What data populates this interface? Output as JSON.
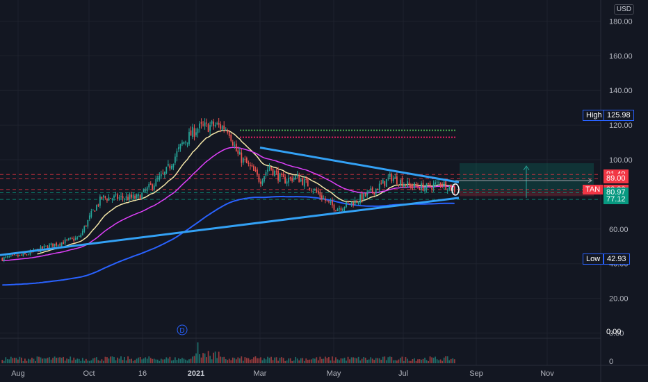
{
  "currency": "USD",
  "chart_data": {
    "type": "candlestick",
    "ticker": "TAN",
    "ylim": [
      -2,
      190
    ],
    "y_ticks": [
      0,
      20,
      40,
      60,
      80,
      100,
      120,
      140,
      160,
      180
    ],
    "y_tick_labels": [
      "0.00",
      "20.00",
      "40.00",
      "60.00",
      "80.00",
      "100.00",
      "120.00",
      "140.00",
      "160.00",
      "180.00"
    ],
    "x_labels": [
      "Aug",
      "Oct",
      "16",
      "2021",
      "Mar",
      "May",
      "Jul",
      "Sep",
      "Nov"
    ],
    "x_bold": "2021",
    "price_anchors": [
      {
        "t": 0,
        "p": 43
      },
      {
        "t": 0.05,
        "p": 45
      },
      {
        "t": 0.1,
        "p": 50
      },
      {
        "t": 0.17,
        "p": 55
      },
      {
        "t": 0.2,
        "p": 70
      },
      {
        "t": 0.22,
        "p": 78
      },
      {
        "t": 0.3,
        "p": 78
      },
      {
        "t": 0.33,
        "p": 85
      },
      {
        "t": 0.36,
        "p": 92
      },
      {
        "t": 0.4,
        "p": 110
      },
      {
        "t": 0.43,
        "p": 118
      },
      {
        "t": 0.47,
        "p": 120
      },
      {
        "t": 0.5,
        "p": 118
      },
      {
        "t": 0.52,
        "p": 103
      },
      {
        "t": 0.55,
        "p": 95
      },
      {
        "t": 0.57,
        "p": 88
      },
      {
        "t": 0.59,
        "p": 96
      },
      {
        "t": 0.62,
        "p": 88
      },
      {
        "t": 0.65,
        "p": 90
      },
      {
        "t": 0.68,
        "p": 85
      },
      {
        "t": 0.72,
        "p": 75
      },
      {
        "t": 0.74,
        "p": 72
      },
      {
        "t": 0.78,
        "p": 76
      },
      {
        "t": 0.82,
        "p": 82
      },
      {
        "t": 0.86,
        "p": 90
      },
      {
        "t": 0.9,
        "p": 85
      },
      {
        "t": 0.94,
        "p": 84
      },
      {
        "t": 0.97,
        "p": 87
      },
      {
        "t": 1.0,
        "p": 82.82
      }
    ],
    "moving_averages": [
      {
        "name": "",
        "color": "#f5e7a8"
      },
      {
        "name": "",
        "color": "#e040fb"
      },
      {
        "name": "",
        "color": "#2962ff"
      }
    ],
    "trendlines": {
      "color": "#33a1f5"
    },
    "horizontal_levels": [
      {
        "value": 117,
        "color": "#4caf50"
      },
      {
        "value": 113,
        "color": "#e91e63"
      }
    ],
    "price_labels": [
      {
        "value": 91.49,
        "text": "91.49",
        "color": "#f23645"
      },
      {
        "value": 89.0,
        "text": "89.00",
        "color": "#f23645"
      },
      {
        "value": 82.82,
        "text": "82.82",
        "color": "#f23645",
        "label": "TAN"
      },
      {
        "value": 80.97,
        "text": "80.97",
        "color": "#089981"
      },
      {
        "value": 77.12,
        "text": "77.12",
        "color": "#089981"
      }
    ],
    "high": {
      "label": "High",
      "value": "125.98"
    },
    "low": {
      "label": "Low",
      "value": "42.93"
    },
    "volume_ticks": [
      "0.00"
    ]
  }
}
